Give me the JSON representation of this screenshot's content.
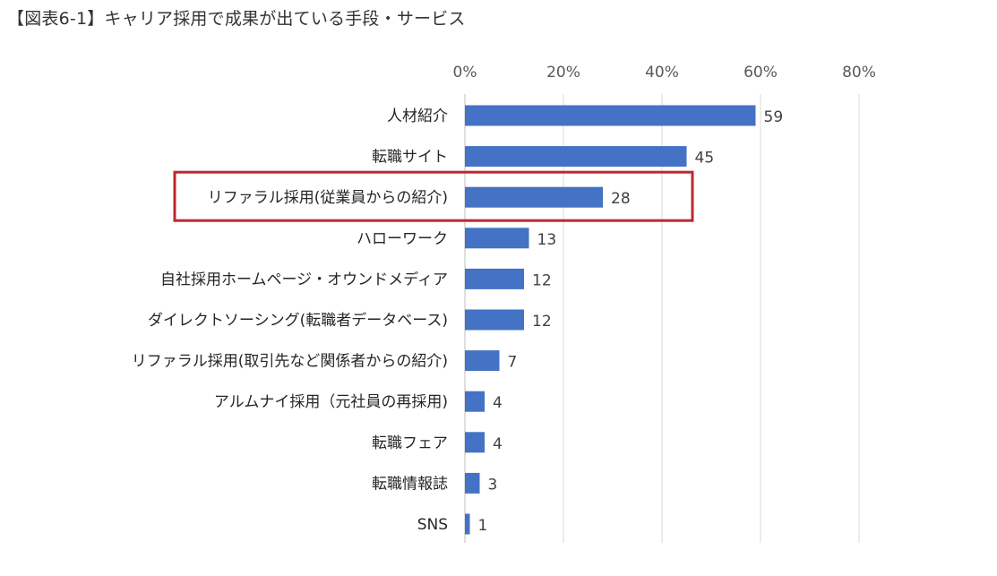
{
  "page": {
    "title": "【図表6-1】キャリア採用で成果が出ている手段・サービス"
  },
  "chart_data": {
    "type": "bar",
    "orientation": "horizontal",
    "title": "【図表6-1】キャリア採用で成果が出ている手段・サービス",
    "categories": [
      "人材紹介",
      "転職サイト",
      "リファラル採用(従業員からの紹介)",
      "ハローワーク",
      "自社採用ホームページ・オウンドメディア",
      "ダイレクトソーシング(転職者データベース)",
      "リファラル採用(取引先など関係者からの紹介)",
      "アルムナイ採用（元社員の再採用)",
      "転職フェア",
      "転職情報誌",
      "SNS"
    ],
    "values": [
      59,
      45,
      28,
      13,
      12,
      12,
      7,
      4,
      4,
      3,
      1
    ],
    "xlim": [
      0,
      80
    ],
    "xticks": [
      "0%",
      "20%",
      "40%",
      "60%",
      "80%"
    ],
    "xtick_values": [
      0,
      20,
      40,
      60,
      80
    ],
    "xaxis_position": "top",
    "grid": true,
    "bar_color": "#4472C4",
    "highlight_color": "#C0272D",
    "highlighted_category": "リファラル採用(従業員からの紹介)",
    "xlabel": "",
    "ylabel": ""
  }
}
